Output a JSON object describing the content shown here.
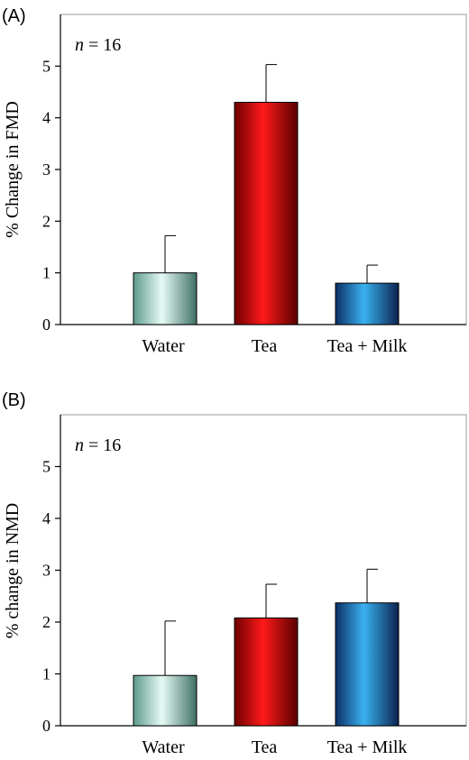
{
  "chart_data": [
    {
      "type": "bar",
      "panel_label": "(A)",
      "annotation_var": "n",
      "annotation_rest": " = 16",
      "ylabel": "% Change in FMD",
      "xlabel": "",
      "categories": [
        "Water",
        "Tea",
        "Tea + Milk"
      ],
      "values": [
        1.0,
        4.3,
        0.8
      ],
      "error_plus": [
        0.72,
        0.73,
        0.35
      ],
      "ylim": [
        0,
        6
      ],
      "yticks": [
        0,
        1,
        2,
        3,
        4,
        5
      ],
      "grid": false,
      "legend": "none",
      "bar_colors": [
        "#a8e0d4",
        "#ff0000",
        "#29a8e8"
      ]
    },
    {
      "type": "bar",
      "panel_label": "(B)",
      "annotation_var": "n",
      "annotation_rest": " = 16",
      "ylabel": "% change in NMD",
      "xlabel": "",
      "categories": [
        "Water",
        "Tea",
        "Tea + Milk"
      ],
      "values": [
        0.97,
        2.08,
        2.37
      ],
      "error_plus": [
        1.05,
        0.65,
        0.65
      ],
      "ylim": [
        0,
        6
      ],
      "yticks": [
        0,
        1,
        2,
        3,
        4,
        5
      ],
      "grid": false,
      "legend": "none",
      "bar_colors": [
        "#a8e0d4",
        "#ff0000",
        "#29a8e8"
      ]
    }
  ]
}
